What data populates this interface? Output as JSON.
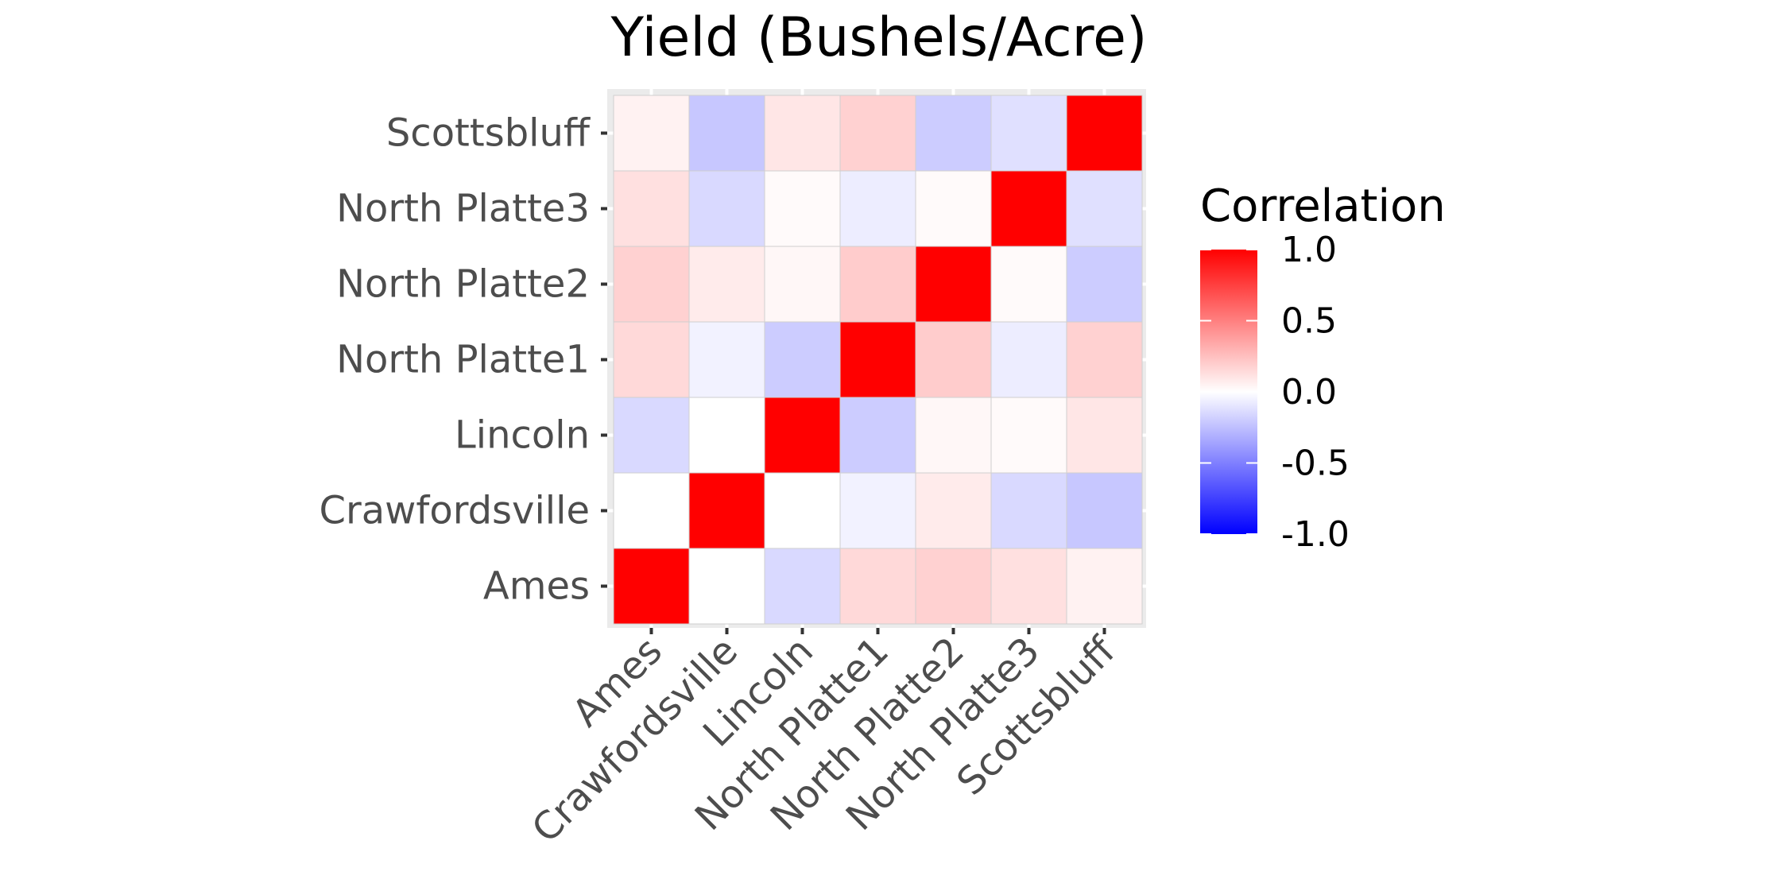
{
  "chart_data": {
    "type": "heatmap",
    "title": "Yield (Bushels/Acre)",
    "xlabel": "",
    "ylabel": "",
    "categories": [
      "Ames",
      "Crawfordsville",
      "Lincoln",
      "North Platte1",
      "North Platte2",
      "North Platte3",
      "Scottsbluff"
    ],
    "values": [
      [
        1.0,
        0.0,
        -0.15,
        0.15,
        0.18,
        0.12,
        0.05
      ],
      [
        0.0,
        1.0,
        0.0,
        -0.05,
        0.08,
        -0.15,
        -0.22
      ],
      [
        -0.15,
        0.0,
        1.0,
        -0.2,
        0.03,
        0.02,
        0.1
      ],
      [
        0.15,
        -0.05,
        -0.2,
        1.0,
        0.2,
        -0.07,
        0.18
      ],
      [
        0.18,
        0.08,
        0.03,
        0.2,
        1.0,
        0.02,
        -0.2
      ],
      [
        0.12,
        -0.15,
        0.02,
        -0.07,
        0.02,
        1.0,
        -0.12
      ],
      [
        0.05,
        -0.22,
        0.1,
        0.18,
        -0.2,
        -0.12,
        1.0
      ]
    ],
    "color_scale": {
      "low": "#0000ff",
      "mid": "#ffffff",
      "high": "#ff0000",
      "limits": [
        -1,
        1
      ]
    },
    "legend": {
      "title": "Correlation",
      "labels": [
        "1.0",
        "0.5",
        "0.0",
        "-0.5",
        "-1.0"
      ],
      "placement": "right"
    },
    "grid": true
  }
}
